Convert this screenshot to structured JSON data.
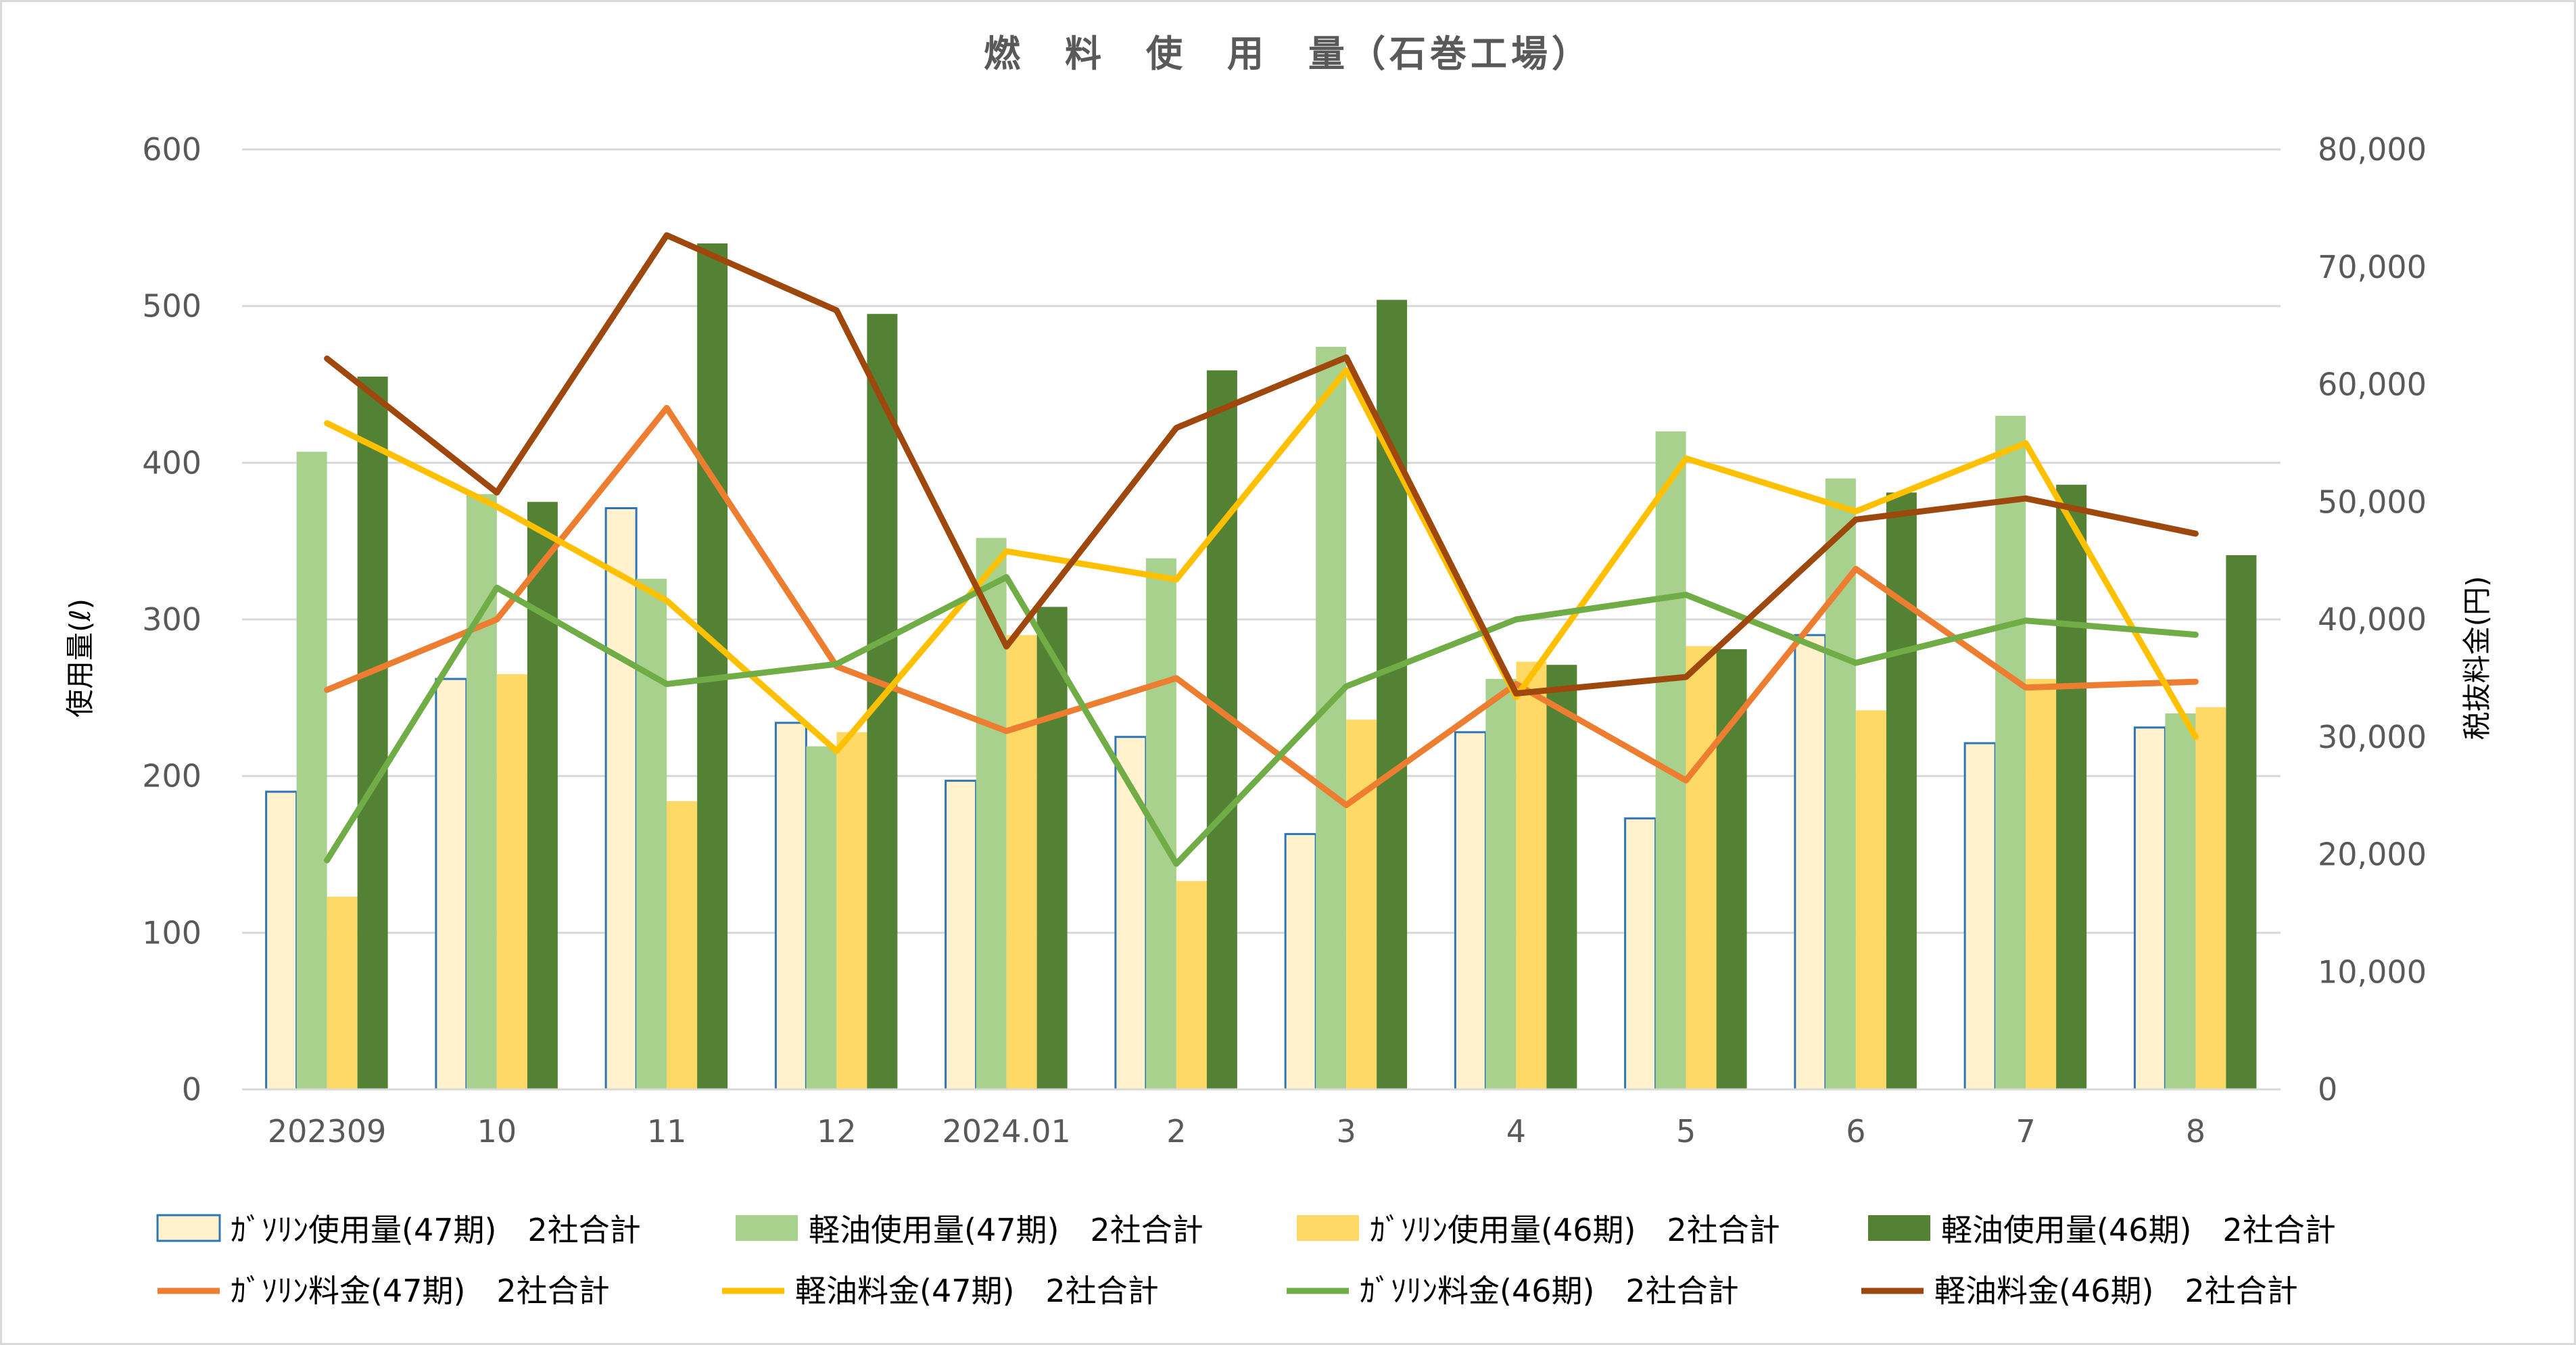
{
  "chart_data": {
    "type": "bar",
    "title": "燃　料　使　用　量（石巻工場）",
    "categories": [
      "202309",
      "10",
      "11",
      "12",
      "2024.01",
      "2",
      "3",
      "4",
      "5",
      "6",
      "7",
      "8"
    ],
    "y_left": {
      "label": "使用量(ℓ)",
      "ylim": [
        0,
        600
      ],
      "ticks": [
        0,
        100,
        200,
        300,
        400,
        500,
        600
      ],
      "tick_labels": [
        "0",
        "100",
        "200",
        "300",
        "400",
        "500",
        "600"
      ]
    },
    "y_right": {
      "label": "税抜料金(円)",
      "ylim": [
        0,
        80000
      ],
      "ticks": [
        0,
        10000,
        20000,
        30000,
        40000,
        50000,
        60000,
        70000,
        80000
      ],
      "tick_labels": [
        "0",
        "10,000",
        "20,000",
        "30,000",
        "40,000",
        "50,000",
        "60,000",
        "70,000",
        "80,000"
      ]
    },
    "grid": true,
    "legend_position": "bottom",
    "bar_series": [
      {
        "name": "ｶﾞｿﾘﾝ使用量(47期)　2社合計",
        "axis": "left",
        "color": "#fff2cc",
        "stroke": "#2e75b6",
        "values": [
          190,
          262,
          371,
          234,
          197,
          225,
          163,
          228,
          173,
          290,
          221,
          231
        ]
      },
      {
        "name": "軽油使用量(47期)　2社合計",
        "axis": "left",
        "color": "#a9d18e",
        "stroke": "none",
        "values": [
          407,
          380,
          326,
          219,
          352,
          339,
          474,
          262,
          420,
          390,
          430,
          240
        ]
      },
      {
        "name": "ｶﾞｿﾘﾝ使用量(46期)　2社合計",
        "axis": "left",
        "color": "#ffd966",
        "stroke": "none",
        "values": [
          123,
          265,
          184,
          228,
          290,
          133,
          236,
          273,
          283,
          242,
          262,
          244
        ]
      },
      {
        "name": "軽油使用量(46期)　2社合計",
        "axis": "left",
        "color": "#548235",
        "stroke": "none",
        "values": [
          455,
          375,
          540,
          495,
          308,
          459,
          504,
          271,
          281,
          381,
          386,
          341
        ]
      }
    ],
    "line_series": [
      {
        "name": "ｶﾞｿﾘﾝ料金(47期)　2社合計",
        "axis": "right",
        "color": "#ed7d31",
        "values": [
          34000,
          40000,
          58000,
          36000,
          30500,
          35000,
          24200,
          34500,
          26300,
          44300,
          34200,
          34700
        ]
      },
      {
        "name": "軽油料金(47期)　2社合計",
        "axis": "right",
        "color": "#ffc000",
        "values": [
          56700,
          49600,
          41600,
          28800,
          45800,
          43400,
          61200,
          33400,
          53700,
          49200,
          55000,
          30000
        ]
      },
      {
        "name": "ｶﾞｿﾘﾝ料金(46期)　2社合計",
        "axis": "right",
        "color": "#70ad47",
        "values": [
          19500,
          42700,
          34500,
          36200,
          43600,
          19200,
          34300,
          40000,
          42100,
          36300,
          39900,
          38700
        ]
      },
      {
        "name": "軽油料金(46期)　2社合計",
        "axis": "right",
        "color": "#9e480e",
        "values": [
          62200,
          50800,
          72700,
          66300,
          37700,
          56300,
          62300,
          33700,
          35100,
          48500,
          50300,
          47300
        ]
      }
    ]
  }
}
